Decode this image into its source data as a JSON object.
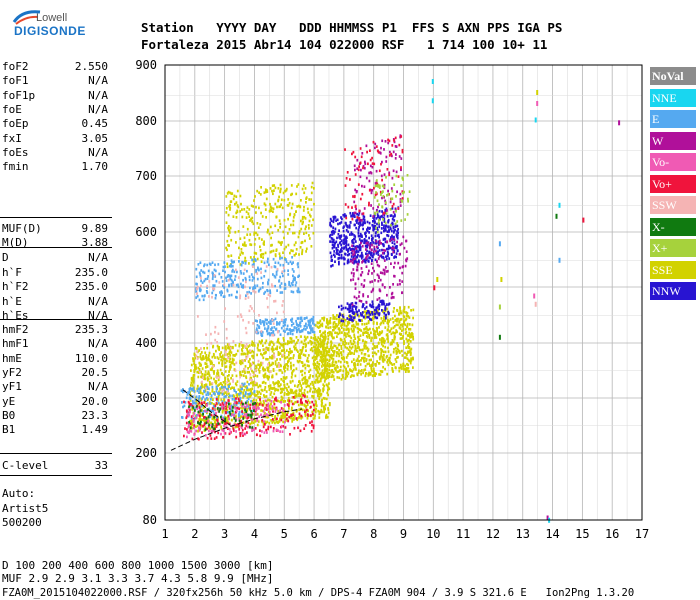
{
  "logo": {
    "top": "Lowell",
    "main": "DIGISONDE"
  },
  "header": {
    "labels": "Station   YYYY DAY   DDD HHMMSS P1  FFS S AXN PPS IGA PS",
    "values": "Fortaleza 2015 Abr14 104 022000 RSF   1 714 100 10+ 11"
  },
  "params_a": [
    {
      "label": "foF2",
      "value": "2.550"
    },
    {
      "label": "foF1",
      "value": "N/A"
    },
    {
      "label": "foF1p",
      "value": "N/A"
    },
    {
      "label": "foE",
      "value": "N/A"
    },
    {
      "label": "foEp",
      "value": "0.45"
    },
    {
      "label": "fxI",
      "value": "3.05"
    },
    {
      "label": "foEs",
      "value": "N/A"
    },
    {
      "label": "fmin",
      "value": "1.70"
    }
  ],
  "params_b": [
    {
      "label": "MUF(D)",
      "value": "9.89"
    },
    {
      "label": "M(D)",
      "value": "3.88"
    },
    {
      "label": "D",
      "value": "N/A"
    }
  ],
  "params_c": [
    {
      "label": "h`F",
      "value": "235.0"
    },
    {
      "label": "h`F2",
      "value": "235.0"
    },
    {
      "label": "h`E",
      "value": "N/A"
    },
    {
      "label": "h`Es",
      "value": "N/A"
    }
  ],
  "params_d": [
    {
      "label": "hmF2",
      "value": "235.3"
    },
    {
      "label": "hmF1",
      "value": "N/A"
    },
    {
      "label": "hmE",
      "value": "110.0"
    },
    {
      "label": "yF2",
      "value": "20.5"
    },
    {
      "label": "yF1",
      "value": "N/A"
    },
    {
      "label": "yE",
      "value": "20.0"
    },
    {
      "label": "B0",
      "value": "23.3"
    },
    {
      "label": "B1",
      "value": "1.49"
    }
  ],
  "params_e": [
    {
      "label": "C-level",
      "value": "33"
    }
  ],
  "notes": [
    "Auto:",
    "Artist5",
    "500200"
  ],
  "legend": [
    {
      "label": "NoVal",
      "color": "#8c8c8c"
    },
    {
      "label": "NNE",
      "color": "#19d6f0"
    },
    {
      "label": "E",
      "color": "#55a9f0"
    },
    {
      "label": "W",
      "color": "#b0109a"
    },
    {
      "label": "Vo-",
      "color": "#f05ab4"
    },
    {
      "label": "Vo+",
      "color": "#f0143c"
    },
    {
      "label": "SSW",
      "color": "#f5b4b4"
    },
    {
      "label": "X-",
      "color": "#107a10"
    },
    {
      "label": "X+",
      "color": "#a6d23c"
    },
    {
      "label": "SSE",
      "color": "#d2d200"
    },
    {
      "label": "NNW",
      "color": "#2814d2"
    }
  ],
  "bottom": {
    "line1": "D      100  200  400  600  800 1000 1500 3000 [km]",
    "line2": "MUF    2.9  2.9  3.1  3.3  3.7  4.3  5.8  9.9 [MHz]",
    "line3": "FZA0M_2015104022000.RSF / 320fx256h 50 kHz 5.0 km / DPS-4 FZA0M 904 / 3.9 S 321.6 E   Ion2Png 1.3.20"
  },
  "chart_data": {
    "type": "scatter",
    "title": "",
    "xlabel": "",
    "ylabel": "",
    "xlim": [
      1,
      17
    ],
    "ylim": [
      80,
      900
    ],
    "x_ticks": [
      1,
      2,
      3,
      4,
      5,
      6,
      7,
      8,
      9,
      10,
      11,
      12,
      13,
      14,
      15,
      16,
      17
    ],
    "y_ticks": [
      80,
      200,
      300,
      400,
      500,
      600,
      700,
      800,
      900
    ],
    "grid": true,
    "clusters": [
      {
        "series": "SSE",
        "x": [
          1.8,
          6.5
        ],
        "y": [
          240,
          420
        ],
        "n": 1400
      },
      {
        "series": "SSE",
        "x": [
          6.0,
          9.3
        ],
        "y": [
          330,
          470
        ],
        "n": 900
      },
      {
        "series": "SSE",
        "x": [
          3.0,
          6.0
        ],
        "y": [
          540,
          700
        ],
        "n": 320
      },
      {
        "series": "E",
        "x": [
          2.0,
          5.5
        ],
        "y": [
          480,
          560
        ],
        "n": 260
      },
      {
        "series": "E",
        "x": [
          4.0,
          6.0
        ],
        "y": [
          415,
          450
        ],
        "n": 160
      },
      {
        "series": "E",
        "x": [
          1.5,
          4.0
        ],
        "y": [
          260,
          330
        ],
        "n": 200
      },
      {
        "series": "NNW",
        "x": [
          6.5,
          8.8
        ],
        "y": [
          540,
          650
        ],
        "n": 520
      },
      {
        "series": "NNW",
        "x": [
          6.8,
          8.5
        ],
        "y": [
          440,
          480
        ],
        "n": 130
      },
      {
        "series": "W",
        "x": [
          7.2,
          9.1
        ],
        "y": [
          470,
          600
        ],
        "n": 160
      },
      {
        "series": "W",
        "x": [
          7.3,
          8.9
        ],
        "y": [
          620,
          780
        ],
        "n": 100
      },
      {
        "series": "Vo+",
        "x": [
          1.6,
          6.0
        ],
        "y": [
          225,
          310
        ],
        "n": 220
      },
      {
        "series": "Vo+",
        "x": [
          7.0,
          9.0
        ],
        "y": [
          620,
          780
        ],
        "n": 80
      },
      {
        "series": "Vo-",
        "x": [
          1.7,
          5.0
        ],
        "y": [
          230,
          300
        ],
        "n": 140
      },
      {
        "series": "SSW",
        "x": [
          2.0,
          5.0
        ],
        "y": [
          300,
          560
        ],
        "n": 140
      },
      {
        "series": "X-",
        "x": [
          1.7,
          4.0
        ],
        "y": [
          240,
          300
        ],
        "n": 60
      },
      {
        "series": "X+",
        "x": [
          8.0,
          9.2
        ],
        "y": [
          600,
          720
        ],
        "n": 60
      }
    ],
    "sparse_points": [
      {
        "series": "NNE",
        "x": 9.95,
        "y": 880
      },
      {
        "series": "NNE",
        "x": 9.95,
        "y": 845
      },
      {
        "series": "SSE",
        "x": 13.45,
        "y": 860
      },
      {
        "series": "Vo-",
        "x": 13.45,
        "y": 840
      },
      {
        "series": "NNE",
        "x": 13.4,
        "y": 810
      },
      {
        "series": "W",
        "x": 16.2,
        "y": 805
      },
      {
        "series": "Vo+",
        "x": 15.0,
        "y": 628
      },
      {
        "series": "NNE",
        "x": 14.2,
        "y": 655
      },
      {
        "series": "X-",
        "x": 14.1,
        "y": 635
      },
      {
        "series": "E",
        "x": 12.2,
        "y": 585
      },
      {
        "series": "SSE",
        "x": 12.25,
        "y": 520
      },
      {
        "series": "X+",
        "x": 12.2,
        "y": 470
      },
      {
        "series": "X-",
        "x": 12.2,
        "y": 415
      },
      {
        "series": "Vo-",
        "x": 13.35,
        "y": 490
      },
      {
        "series": "SSW",
        "x": 13.4,
        "y": 475
      },
      {
        "series": "E",
        "x": 14.2,
        "y": 555
      },
      {
        "series": "W",
        "x": 13.8,
        "y": 88
      },
      {
        "series": "NNE",
        "x": 13.85,
        "y": 84
      },
      {
        "series": "SSE",
        "x": 10.1,
        "y": 520
      },
      {
        "series": "Vo+",
        "x": 10.0,
        "y": 505
      }
    ],
    "profile_curve": {
      "x": [
        1.2,
        2.0,
        3.0,
        4.0,
        5.0,
        5.6
      ],
      "y": [
        205,
        225,
        245,
        262,
        275,
        280
      ]
    },
    "profile_curve2": {
      "x": [
        1.6,
        2.1,
        2.6,
        3.2
      ],
      "y": [
        315,
        295,
        272,
        250
      ]
    }
  }
}
